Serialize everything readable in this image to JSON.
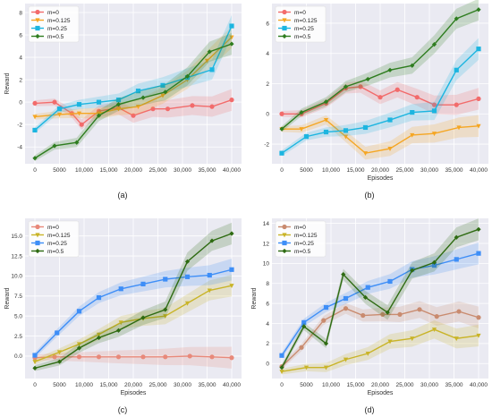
{
  "chart_data": [
    {
      "panel": "(a)",
      "type": "line",
      "xlabel": "",
      "ylabel": "Reward",
      "xlim": [
        -2000,
        42000
      ],
      "ylim": [
        -5.5,
        8.8
      ],
      "yticks": [
        -4,
        -2,
        0,
        2,
        4,
        6,
        8
      ],
      "yticklabels": [
        "-4",
        "-2",
        "0",
        "2",
        "4",
        "6",
        "8"
      ],
      "xticks": [
        0,
        5000,
        10000,
        15000,
        20000,
        25000,
        30000,
        35000,
        40000
      ],
      "xticklabels": [
        "0",
        "5000",
        "10,000",
        "15,000",
        "20,000",
        "25,000",
        "30,000",
        "35,000",
        "40,000"
      ],
      "legend_position": "top-left",
      "series": [
        {
          "name": "m=0",
          "color": "#f26b6b",
          "marker": "circle",
          "x": [
            0,
            4000,
            7500,
            9500,
            13000,
            17000,
            20000,
            24000,
            27000,
            32000,
            36000,
            40000
          ],
          "y": [
            -0.1,
            0.0,
            -1.0,
            -2.0,
            -0.8,
            -0.5,
            -1.2,
            -0.6,
            -0.6,
            -0.3,
            -0.4,
            0.2
          ]
        },
        {
          "name": "m=0.125",
          "color": "#f5a623",
          "marker": "triangle",
          "x": [
            0,
            5000,
            9000,
            13000,
            17000,
            21000,
            26000,
            31000,
            35000,
            40000
          ],
          "y": [
            -1.3,
            -1.1,
            -1.0,
            -1.0,
            -0.6,
            -0.4,
            0.6,
            2.0,
            3.7,
            5.8
          ]
        },
        {
          "name": "m=0.25",
          "color": "#1cb5e0",
          "marker": "square",
          "x": [
            0,
            5000,
            9000,
            13000,
            17000,
            21000,
            26000,
            31000,
            36000,
            40000
          ],
          "y": [
            -2.5,
            -0.6,
            -0.2,
            0.0,
            0.2,
            1.0,
            1.5,
            2.2,
            2.9,
            6.8
          ]
        },
        {
          "name": "m=0.5",
          "color": "#2e7d1f",
          "marker": "diamond",
          "x": [
            0,
            4000,
            8500,
            13000,
            17000,
            22000,
            26500,
            31000,
            35500,
            40000
          ],
          "y": [
            -5.0,
            -3.9,
            -3.6,
            -1.2,
            -0.2,
            0.4,
            0.9,
            2.3,
            4.5,
            5.2
          ]
        }
      ]
    },
    {
      "panel": "(b)",
      "type": "line",
      "xlabel": "Episodes",
      "ylabel": "",
      "xlim": [
        -2000,
        42000
      ],
      "ylim": [
        -3.3,
        7.3
      ],
      "yticks": [
        -2,
        0,
        2,
        4,
        6
      ],
      "yticklabels": [
        "-2",
        "0",
        "2",
        "4",
        "6"
      ],
      "xticks": [
        0,
        5000,
        10000,
        15000,
        20000,
        25000,
        30000,
        35000,
        40000
      ],
      "xticklabels": [
        "0",
        "5000",
        "10,000",
        "15,000",
        "20,000",
        "25,000",
        "30,000",
        "35,000",
        "40,000"
      ],
      "legend_position": "top-left",
      "series": [
        {
          "name": "m=0",
          "color": "#f26b6b",
          "marker": "circle",
          "x": [
            0,
            4000,
            9000,
            13000,
            16000,
            20000,
            23500,
            27500,
            31000,
            35500,
            40000
          ],
          "y": [
            0.0,
            0.0,
            0.7,
            1.7,
            1.8,
            1.1,
            1.6,
            1.1,
            0.6,
            0.6,
            1.0
          ]
        },
        {
          "name": "m=0.125",
          "color": "#f5a623",
          "marker": "triangle",
          "x": [
            0,
            4000,
            9000,
            13000,
            17000,
            22000,
            26500,
            31000,
            36000,
            40000
          ],
          "y": [
            -1.0,
            -1.0,
            -0.4,
            -1.5,
            -2.6,
            -2.3,
            -1.4,
            -1.3,
            -0.9,
            -0.8
          ]
        },
        {
          "name": "m=0.25",
          "color": "#1cb5e0",
          "marker": "square",
          "x": [
            0,
            5000,
            9000,
            13000,
            17000,
            22000,
            26500,
            31000,
            35500,
            40000
          ],
          "y": [
            -2.6,
            -1.5,
            -1.2,
            -1.1,
            -0.9,
            -0.4,
            0.1,
            0.2,
            2.9,
            4.3
          ]
        },
        {
          "name": "m=0.5",
          "color": "#2e7d1f",
          "marker": "diamond",
          "x": [
            0,
            4000,
            9000,
            13000,
            17500,
            22000,
            26500,
            31000,
            35500,
            40000
          ],
          "y": [
            -1.0,
            0.1,
            0.8,
            1.8,
            2.3,
            2.9,
            3.2,
            4.6,
            6.3,
            6.9
          ]
        }
      ]
    },
    {
      "panel": "(c)",
      "type": "line",
      "xlabel": "Episodes",
      "ylabel": "Reward",
      "xlim": [
        -2000,
        42000
      ],
      "ylim": [
        -2.8,
        17.2
      ],
      "yticks": [
        0,
        2.5,
        5,
        7.5,
        10,
        12.5,
        15
      ],
      "yticklabels": [
        "0.0",
        "2.5",
        "5.0",
        "7.5",
        "10.0",
        "12.5",
        "15.0"
      ],
      "xticks": [
        0,
        5000,
        10000,
        15000,
        20000,
        25000,
        30000,
        35000,
        40000
      ],
      "xticklabels": [
        "0",
        "5000",
        "10,000",
        "15,000",
        "20,000",
        "25,000",
        "30,000",
        "35,000",
        "40,000"
      ],
      "legend_position": "top-left",
      "series": [
        {
          "name": "m=0",
          "color": "#e8897a",
          "marker": "circle",
          "x": [
            0,
            4000,
            9000,
            13000,
            17000,
            22000,
            26500,
            31500,
            36000,
            40000
          ],
          "y": [
            -0.2,
            -0.1,
            -0.1,
            -0.1,
            -0.1,
            -0.1,
            -0.1,
            0.0,
            -0.1,
            -0.2
          ]
        },
        {
          "name": "m=0.125",
          "color": "#c9b428",
          "marker": "triangle",
          "x": [
            0,
            5000,
            9000,
            13000,
            17500,
            22000,
            26500,
            31000,
            35500,
            40000
          ],
          "y": [
            -0.7,
            0.5,
            1.5,
            2.7,
            4.2,
            4.7,
            5.0,
            6.6,
            8.2,
            8.8
          ]
        },
        {
          "name": "m=0.25",
          "color": "#3e8ef7",
          "marker": "square",
          "x": [
            0,
            4500,
            9000,
            13000,
            17500,
            22000,
            26500,
            31000,
            35500,
            40000
          ],
          "y": [
            0.1,
            2.9,
            5.6,
            7.3,
            8.4,
            9.0,
            9.6,
            9.9,
            10.1,
            10.8
          ]
        },
        {
          "name": "m=0.5",
          "color": "#2e6b12",
          "marker": "diamond",
          "x": [
            0,
            5000,
            9000,
            13000,
            17000,
            22000,
            26500,
            31000,
            36000,
            40000
          ],
          "y": [
            -1.5,
            -0.7,
            1.0,
            2.3,
            3.2,
            4.8,
            5.8,
            11.8,
            14.4,
            15.3
          ]
        }
      ]
    },
    {
      "panel": "(d)",
      "type": "line",
      "xlabel": "Episodes",
      "ylabel": "Reward",
      "xlim": [
        -2000,
        42000
      ],
      "ylim": [
        -1.5,
        14.5
      ],
      "yticks": [
        0,
        2,
        4,
        6,
        8,
        10,
        12,
        14
      ],
      "yticklabels": [
        "0",
        "2",
        "4",
        "6",
        "8",
        "10",
        "12",
        "14"
      ],
      "xticks": [
        0,
        5000,
        10000,
        15000,
        20000,
        25000,
        30000,
        35000,
        40000
      ],
      "xticklabels": [
        "0",
        "5000",
        "10,000",
        "15,000",
        "20,000",
        "25,000",
        "30,000",
        "35,000",
        "40,000"
      ],
      "legend_position": "top-left",
      "series": [
        {
          "name": "m=0",
          "color": "#c98b6f",
          "marker": "circle",
          "x": [
            0,
            4000,
            8500,
            13000,
            16500,
            20500,
            24000,
            28000,
            31500,
            36000,
            40000
          ],
          "y": [
            -0.3,
            1.6,
            4.3,
            5.5,
            4.8,
            4.9,
            4.9,
            5.4,
            4.7,
            5.2,
            4.6
          ]
        },
        {
          "name": "m=0.125",
          "color": "#c9b428",
          "marker": "triangle",
          "x": [
            0,
            5000,
            9000,
            13000,
            17500,
            22000,
            26500,
            31000,
            35500,
            40000
          ],
          "y": [
            -0.8,
            -0.4,
            -0.4,
            0.4,
            1.0,
            2.2,
            2.5,
            3.4,
            2.5,
            2.8
          ]
        },
        {
          "name": "m=0.25",
          "color": "#3e8ef7",
          "marker": "square",
          "x": [
            0,
            4500,
            9000,
            13000,
            17500,
            22000,
            26500,
            31000,
            35500,
            40000
          ],
          "y": [
            0.8,
            4.1,
            5.6,
            6.5,
            7.6,
            8.2,
            9.4,
            9.8,
            10.4,
            11.0
          ]
        },
        {
          "name": "m=0.5",
          "color": "#2e6b12",
          "marker": "diamond",
          "x": [
            0,
            4500,
            9000,
            12500,
            17000,
            21500,
            26500,
            31000,
            35500,
            40000
          ],
          "y": [
            -0.4,
            3.7,
            2.0,
            8.9,
            6.6,
            5.1,
            9.3,
            10.1,
            12.6,
            13.4
          ]
        }
      ]
    }
  ],
  "captions": [
    "(a)",
    "(b)",
    "(c)",
    "(d)"
  ]
}
